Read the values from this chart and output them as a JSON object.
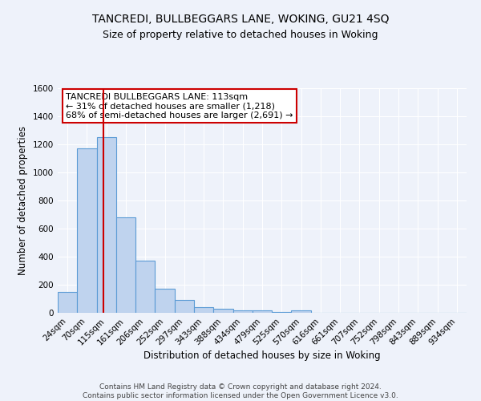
{
  "title": "TANCREDI, BULLBEGGARS LANE, WOKING, GU21 4SQ",
  "subtitle": "Size of property relative to detached houses in Woking",
  "xlabel": "Distribution of detached houses by size in Woking",
  "ylabel": "Number of detached properties",
  "categories": [
    "24sqm",
    "70sqm",
    "115sqm",
    "161sqm",
    "206sqm",
    "252sqm",
    "297sqm",
    "343sqm",
    "388sqm",
    "434sqm",
    "479sqm",
    "525sqm",
    "570sqm",
    "616sqm",
    "661sqm",
    "707sqm",
    "752sqm",
    "798sqm",
    "843sqm",
    "889sqm",
    "934sqm"
  ],
  "values": [
    150,
    1170,
    1250,
    680,
    370,
    170,
    90,
    38,
    28,
    20,
    15,
    5,
    15,
    0,
    0,
    0,
    0,
    0,
    0,
    0,
    0
  ],
  "bar_color": "#bfd3ee",
  "bar_edge_color": "#5b9bd5",
  "background_color": "#eef2fa",
  "grid_color": "#ffffff",
  "vline_color": "#cc0000",
  "vline_position": 1.85,
  "annotation_text": "TANCREDI BULLBEGGARS LANE: 113sqm\n← 31% of detached houses are smaller (1,218)\n68% of semi-detached houses are larger (2,691) →",
  "annotation_box_color": "#ffffff",
  "annotation_box_edge": "#cc0000",
  "footer": "Contains HM Land Registry data © Crown copyright and database right 2024.\nContains public sector information licensed under the Open Government Licence v3.0.",
  "ylim": [
    0,
    1600
  ],
  "yticks": [
    0,
    200,
    400,
    600,
    800,
    1000,
    1200,
    1400,
    1600
  ],
  "title_fontsize": 10,
  "subtitle_fontsize": 9,
  "axis_label_fontsize": 8.5,
  "tick_fontsize": 7.5,
  "annotation_fontsize": 8,
  "footer_fontsize": 6.5
}
